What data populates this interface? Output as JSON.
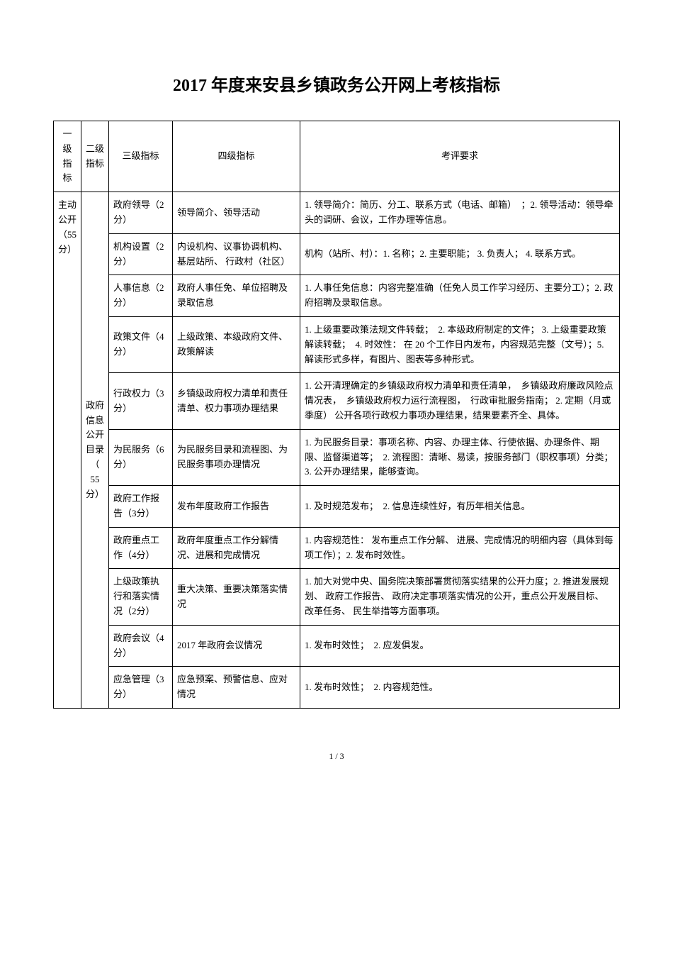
{
  "title": "2017 年度来安县乡镇政务公开网上考核指标",
  "headers": {
    "col1": "一级指标",
    "col2": "二级指标",
    "col3": "三级指标",
    "col4": "四级指标",
    "col5": "考评要求"
  },
  "level1": {
    "label": "主动公开（55分）"
  },
  "level2": {
    "label": "政府信息公开目录（ 55分）"
  },
  "rows": [
    {
      "col3": "政府领导（2分）",
      "col4": "领导简介、领导活动",
      "col5": "1. 领导简介：简历、分工、联系方式（电话、邮箱）　；2. 领导活动：领导牵头的调研、会议，工作办理等信息。"
    },
    {
      "col3": "机构设置（2分）",
      "col4": "内设机构、议事协调机构、基层站所、 行政村（社区）",
      "col5": "机构（站所、村）：1. 名称；2. 主要职能； 3. 负责人； 4. 联系方式。"
    },
    {
      "col3": "人事信息（2分）",
      "col4": "政府人事任免、单位招聘及录取信息",
      "col5": "1. 人事任免信息：内容完整准确（任免人员工作学习经历、主要分工）；2. 政府招聘及录取信息。"
    },
    {
      "col3": "政策文件（4分）",
      "col4": "上级政策、本级政府文件、政策解读",
      "col5": "1. 上级重要政策法规文件转载；　2. 本级政府制定的文件； 3. 上级重要政策解读转载；　4. 时效性： 在 20 个工作日内发布，内容规范完整（文号）；5. 解读形式多样，有图片、图表等多种形式。"
    },
    {
      "col3": "行政权力（3分）",
      "col4": "乡镇级政府权力清单和责任清单、权力事项办理结果",
      "col5": "1. 公开清理确定的乡镇级政府权力清单和责任清单，　乡镇级政府廉政风险点情况表，　乡镇级政府权力运行流程图，　行政审批服务指南； 2. 定期（月或季度） 公开各项行政权力事项办理结果，结果要素齐全、具体。"
    },
    {
      "col3": "为民服务（6分）",
      "col4": "为民服务目录和流程图、为民服务事项办理情况",
      "col5": "1. 为民服务目录：事项名称、内容、办理主体、行使依据、办理条件、期限、监督渠道等；　2. 流程图：清晰、易读，按服务部门（职权事项）分类；　3. 公开办理结果，能够查询。"
    },
    {
      "col3": "政府工作报告（3分）",
      "col4": "发布年度政府工作报告",
      "col5": "1. 及时规范发布；　2. 信息连续性好，有历年相关信息。"
    },
    {
      "col3": "政府重点工作（4分）",
      "col4": "政府年度重点工作分解情况、进展和完成情况",
      "col5": "1. 内容规范性： 发布重点工作分解、 进展、完成情况的明细内容（具体到每项工作）；2. 发布时效性。"
    },
    {
      "col3": "上级政策执行和落实情况（2分）",
      "col4": "重大决策、重要决策落实情况",
      "col5": "1. 加大对党中央、国务院决策部署贯彻落实结果的公开力度；2. 推进发展规划、 政府工作报告、 政府决定事项落实情况的公开，重点公开发展目标、 改革任务、 民生举措等方面事项。"
    },
    {
      "col3": "政府会议（4分）",
      "col4": "2017 年政府会议情况",
      "col5": "1. 发布时效性；　2. 应发俱发。"
    },
    {
      "col3": "应急管理（3分）",
      "col4": "应急预案、预警信息、应对情况",
      "col5": "1. 发布时效性；　2. 内容规范性。"
    }
  ],
  "pageNum": "1 / 3"
}
